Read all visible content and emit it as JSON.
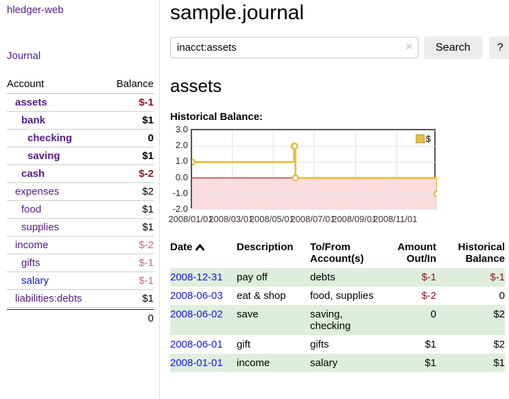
{
  "sidebar": {
    "app_title": "hledger-web",
    "journal_label": "Journal",
    "accounts_table": {
      "headers": {
        "account": "Account",
        "balance": "Balance"
      },
      "rows": [
        {
          "name": "assets",
          "balance": "$-1",
          "level": 1,
          "bold": true,
          "negative": true
        },
        {
          "name": "bank",
          "balance": "$1",
          "level": 2,
          "bold": true
        },
        {
          "name": "checking",
          "balance": "0",
          "level": 3,
          "bold": true
        },
        {
          "name": "saving",
          "balance": "$1",
          "level": 3,
          "bold": true
        },
        {
          "name": "cash",
          "balance": "$-2",
          "level": 2,
          "bold": true,
          "negative": true
        },
        {
          "name": "expenses",
          "balance": "$2",
          "level": 1
        },
        {
          "name": "food",
          "balance": "$1",
          "level": 2
        },
        {
          "name": "supplies",
          "balance": "$1",
          "level": 2
        },
        {
          "name": "income",
          "balance": "$-2",
          "level": 1,
          "negative": true,
          "dim": true
        },
        {
          "name": "gifts",
          "balance": "$-1",
          "level": 2,
          "negative": true,
          "dim": true
        },
        {
          "name": "salary",
          "balance": "$-1",
          "level": 2,
          "negative": true,
          "dim": true,
          "blue": true
        },
        {
          "name": "liabilities:debts",
          "balance": "$1",
          "level": 1
        }
      ],
      "total": "0"
    }
  },
  "main": {
    "title": "sample.journal",
    "search": {
      "value": "inacct:assets",
      "clear_icon": "×",
      "button_label": "Search",
      "help_label": "?"
    },
    "account_heading": "assets",
    "chart_label": "Historical Balance:"
  },
  "chart_data": {
    "type": "line",
    "style": "step",
    "title": "Historical Balance",
    "series": [
      {
        "name": "$",
        "color": "#e6c04a",
        "points": [
          [
            "2008-01-01",
            1
          ],
          [
            "2008-06-01",
            2
          ],
          [
            "2008-06-02",
            2
          ],
          [
            "2008-06-03",
            0
          ],
          [
            "2008-12-31",
            -1
          ]
        ]
      }
    ],
    "xlim": [
      "2008-01-01",
      "2008-12-31"
    ],
    "ylim": [
      -2,
      3
    ],
    "y_ticks": [
      "3.0",
      "2.0",
      "1.0",
      "0.0",
      "-1.0",
      "-2.0"
    ],
    "x_ticks": [
      "2008/01/01",
      "2008/03/01",
      "2008/05/01",
      "2008/07/01",
      "2008/09/01",
      "2008/11/01"
    ],
    "grid": true,
    "negative_region_color": "#fadcdf",
    "zero_line_color": "#990000",
    "legend": {
      "label": "$",
      "position": "top-right"
    }
  },
  "register_table": {
    "headers": {
      "date": "Date",
      "description": "Description",
      "account": "To/From Account(s)",
      "amount": "Amount Out/In",
      "balance": "Historical Balance"
    },
    "sort": {
      "column": "date",
      "direction": "ascending"
    },
    "rows": [
      {
        "date": "2008-12-31",
        "description": "pay off",
        "account": "debts",
        "amount": "$-1",
        "amount_negative": true,
        "balance": "$-1",
        "balance_negative": true
      },
      {
        "date": "2008-06-03",
        "description": "eat & shop",
        "account": "food, supplies",
        "amount": "$-2",
        "amount_negative": true,
        "balance": "0"
      },
      {
        "date": "2008-06-02",
        "description": "save",
        "account": "saving, checking",
        "amount": "0",
        "balance": "$2"
      },
      {
        "date": "2008-06-01",
        "description": "gift",
        "account": "gifts",
        "amount": "$1",
        "balance": "$2"
      },
      {
        "date": "2008-01-01",
        "description": "income",
        "account": "salary",
        "amount": "$1",
        "balance": "$1"
      }
    ]
  }
}
